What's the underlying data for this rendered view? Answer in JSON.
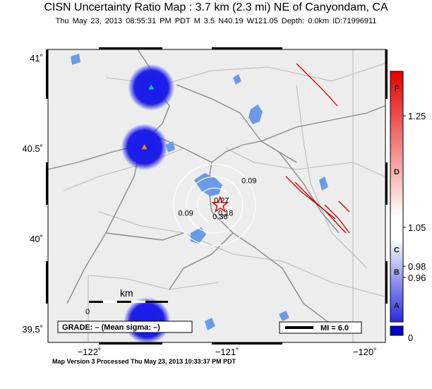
{
  "title": "CISN Uncertainty Ratio Map : 3.7 km (2.3 mi) NE of Canyondam, CA",
  "subtitle": "Thu May 23, 2013 08:55:31 PM PDT   M 3.5   N40.19 W121.05   Depth: 0.0km   ID:71996911",
  "footer": "Map Version 3 Processed Thu May 23, 2013 10:33:37 PM PDT",
  "grade_box": "GRADE: – (Mean sigma: –)",
  "mi_legend": "MI = 6.0",
  "scale_bar": {
    "label": "km",
    "zero": "0"
  },
  "map_extent": {
    "lon": [
      -122.3,
      -119.85
    ],
    "lat": [
      39.43,
      41.05
    ]
  },
  "lat_ticks": [
    {
      "value": 41,
      "label": "41˚"
    },
    {
      "value": 40.5,
      "label": "40.5˚"
    },
    {
      "value": 40,
      "label": "40˚"
    },
    {
      "value": 39.5,
      "label": "39.5˚"
    }
  ],
  "lon_ticks": [
    {
      "value": -122,
      "label": "−122˚"
    },
    {
      "value": -121,
      "label": "−121˚"
    },
    {
      "value": -120,
      "label": "−120˚"
    }
  ],
  "epicenter": {
    "lon": -121.05,
    "lat": 40.19,
    "label": "0.36"
  },
  "contours": [
    {
      "label": "0.09",
      "lon": -121.3,
      "lat": 40.13
    },
    {
      "label": "0.09",
      "lon": -120.84,
      "lat": 40.31
    },
    {
      "label": "0.18",
      "lon": -121.01,
      "lat": 40.13
    },
    {
      "label": "0.27",
      "lon": -121.04,
      "lat": 40.2
    }
  ],
  "uncertainty_blobs": [
    {
      "lon": -121.55,
      "lat": 40.84,
      "station": "triangle",
      "station_color": "#00c8c8"
    },
    {
      "lon": -121.6,
      "lat": 40.51,
      "station": "triangle",
      "station_color": "#ff8800"
    },
    {
      "lon": -121.58,
      "lat": 39.55,
      "station": "",
      "station_color": ""
    }
  ],
  "colors": {
    "water": "#6b9be6",
    "land": "#ededed",
    "roads": "#8a8a8a",
    "faults": "#c40000",
    "blob": "#1e1ee6",
    "epicenter": "#e00000"
  },
  "colorbar": {
    "letters": [
      {
        "value": 0.91,
        "text": "A"
      },
      {
        "value": 0.97,
        "text": "B"
      },
      {
        "value": 1.01,
        "text": "C"
      },
      {
        "value": 1.15,
        "text": "D"
      },
      {
        "value": 1.3,
        "text": "F"
      }
    ],
    "ticks": [
      {
        "value": 1.25,
        "text": "1.25"
      },
      {
        "value": 1.05,
        "text": "1.05"
      },
      {
        "value": 0.98,
        "text": "0.98"
      },
      {
        "value": 0.96,
        "text": "0.96"
      }
    ],
    "bottom_label": "0",
    "range": [
      0.88,
      1.33
    ]
  }
}
